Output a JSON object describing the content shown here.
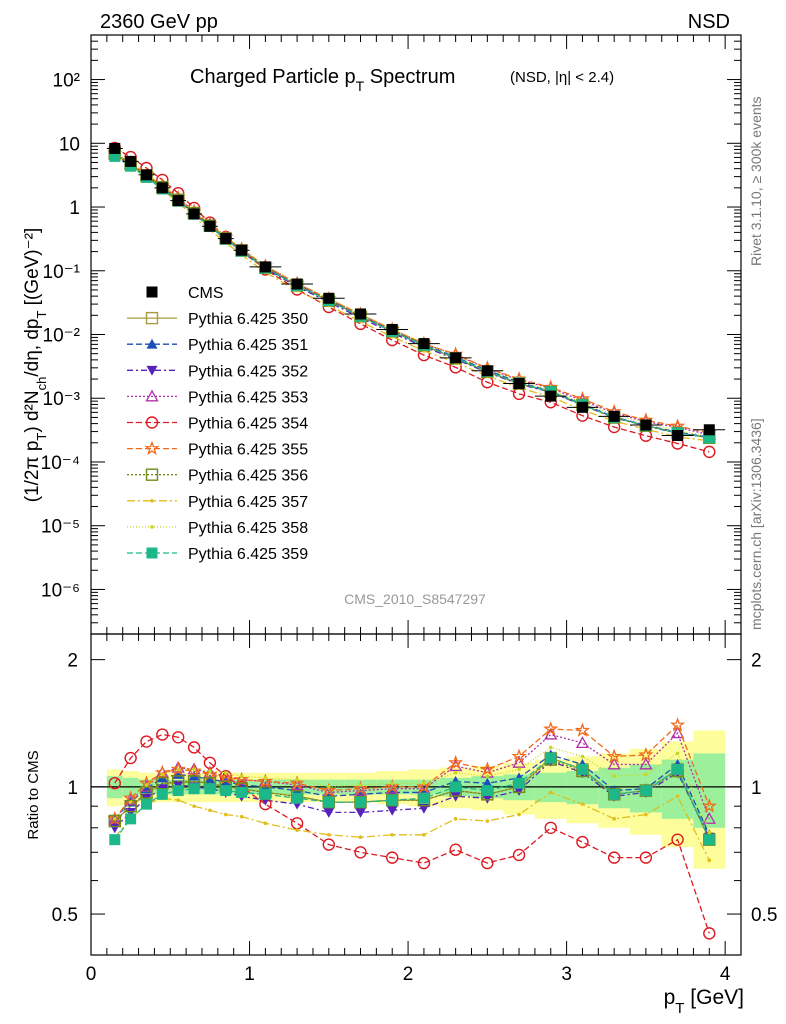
{
  "header": {
    "energy_label": "2360 GeV pp",
    "process_label": "NSD",
    "side_label_top": "Rivet 3.1.10, ≥ 300k events",
    "side_label_bottom": "mcplots.cern.ch [arXiv:1306.3436]"
  },
  "chart_data": {
    "type": "scatter",
    "title": "Charged Particle p_T Spectrum",
    "title_suffix": "(NSD, |η| < 2.4)",
    "analysis_id": "CMS_2010_S8547297",
    "xlabel": "p_T [GeV]",
    "ylabel_main": "(1/2π p_T) d²N_ch/dη, dp_T [(GeV)⁻²]",
    "ylabel_ratio": "Ratio to CMS",
    "xlim": [
      0,
      4.1
    ],
    "main_ylim": [
      2e-07,
      500
    ],
    "main_yscale": "log",
    "ratio_ylim": [
      0.4,
      2.3
    ],
    "ratio_yscale": "log",
    "x_ticks": [
      "0",
      "1",
      "2",
      "3",
      "4"
    ],
    "main_y_ticks": [
      "10⁻⁶",
      "10⁻⁵",
      "10⁻⁴",
      "10⁻³",
      "10⁻²",
      "10⁻¹",
      "1",
      "10",
      "10²"
    ],
    "ratio_y_ticks": [
      "0.5",
      "1",
      "2"
    ],
    "legend_position": "left, middle of main panel",
    "x": [
      0.15,
      0.25,
      0.35,
      0.45,
      0.55,
      0.65,
      0.75,
      0.85,
      0.95,
      1.1,
      1.3,
      1.5,
      1.7,
      1.9,
      2.1,
      2.3,
      2.5,
      2.7,
      2.9,
      3.1,
      3.3,
      3.5,
      3.7,
      3.9
    ],
    "x_err": [
      0.05,
      0.05,
      0.05,
      0.05,
      0.05,
      0.05,
      0.05,
      0.05,
      0.05,
      0.1,
      0.1,
      0.1,
      0.1,
      0.1,
      0.1,
      0.1,
      0.1,
      0.1,
      0.1,
      0.1,
      0.1,
      0.1,
      0.1,
      0.1
    ],
    "cms": [
      8.3,
      5.2,
      3.2,
      2.0,
      1.26,
      0.78,
      0.5,
      0.32,
      0.21,
      0.115,
      0.062,
      0.037,
      0.021,
      0.012,
      0.0072,
      0.0043,
      0.0027,
      0.0017,
      0.00108,
      0.00072,
      0.00052,
      0.00038,
      0.00026,
      0.00032
    ],
    "band_inner": [
      0.06,
      0.05,
      0.04,
      0.04,
      0.04,
      0.04,
      0.04,
      0.04,
      0.04,
      0.04,
      0.04,
      0.04,
      0.04,
      0.04,
      0.04,
      0.05,
      0.06,
      0.07,
      0.08,
      0.09,
      0.11,
      0.13,
      0.16,
      0.2
    ],
    "band_outer": [
      0.1,
      0.09,
      0.08,
      0.08,
      0.08,
      0.08,
      0.08,
      0.08,
      0.08,
      0.08,
      0.08,
      0.08,
      0.08,
      0.09,
      0.1,
      0.11,
      0.12,
      0.14,
      0.16,
      0.18,
      0.2,
      0.23,
      0.28,
      0.36
    ],
    "series": [
      {
        "name": "CMS",
        "color": "#000000",
        "marker": "filled-square",
        "dash": "none"
      },
      {
        "name": "Pythia 6.425 350",
        "color": "#a89b40",
        "marker": "open-square",
        "dash": "solid",
        "ratio": [
          0.83,
          0.9,
          0.96,
          1.02,
          1.02,
          1.03,
          1.02,
          1.0,
          0.99,
          0.97,
          0.95,
          0.92,
          0.92,
          0.93,
          0.93,
          0.98,
          0.96,
          1.0,
          1.17,
          1.1,
          0.96,
          0.98,
          1.1,
          0.75
        ]
      },
      {
        "name": "Pythia 6.425 351",
        "color": "#1c4fb8",
        "marker": "filled-triangle-up",
        "dash": "6,3",
        "ratio": [
          0.84,
          0.92,
          0.99,
          1.05,
          1.07,
          1.06,
          1.04,
          1.03,
          1.01,
          1.0,
          0.98,
          0.95,
          0.96,
          0.97,
          0.97,
          1.03,
          1.02,
          1.05,
          1.19,
          1.13,
          0.98,
          0.99,
          1.13,
          0.77
        ]
      },
      {
        "name": "Pythia 6.425 352",
        "color": "#5522bb",
        "marker": "filled-triangle-down",
        "dash": "6,3,2,3",
        "ratio": [
          0.8,
          0.87,
          0.94,
          0.99,
          1.01,
          1.0,
          0.99,
          0.97,
          0.95,
          0.93,
          0.91,
          0.87,
          0.87,
          0.88,
          0.89,
          0.95,
          0.94,
          0.98,
          1.15,
          1.08,
          0.95,
          0.97,
          1.08,
          0.76
        ]
      },
      {
        "name": "Pythia 6.425 353",
        "color": "#b030a8",
        "marker": "open-triangle-up",
        "dash": "2,2",
        "ratio": [
          0.84,
          0.93,
          1.0,
          1.08,
          1.11,
          1.1,
          1.08,
          1.06,
          1.04,
          1.03,
          1.01,
          0.97,
          0.98,
          0.99,
          0.99,
          1.12,
          1.08,
          1.14,
          1.33,
          1.27,
          1.13,
          1.13,
          1.34,
          0.84
        ]
      },
      {
        "name": "Pythia 6.425 354",
        "color": "#dd1a22",
        "marker": "open-circle",
        "dash": "6,3",
        "ratio": [
          1.02,
          1.17,
          1.28,
          1.33,
          1.31,
          1.24,
          1.14,
          1.06,
          1.0,
          0.91,
          0.82,
          0.73,
          0.7,
          0.68,
          0.66,
          0.71,
          0.66,
          0.69,
          0.8,
          0.74,
          0.68,
          0.68,
          0.75,
          0.45
        ]
      },
      {
        "name": "Pythia 6.425 355",
        "color": "#f06a1a",
        "marker": "open-star",
        "dash": "6,3",
        "ratio": [
          0.84,
          0.94,
          1.02,
          1.08,
          1.1,
          1.09,
          1.07,
          1.05,
          1.04,
          1.03,
          1.02,
          0.98,
          0.99,
          1.0,
          1.0,
          1.14,
          1.1,
          1.18,
          1.37,
          1.36,
          1.18,
          1.19,
          1.4,
          0.9
        ]
      },
      {
        "name": "Pythia 6.425 356",
        "color": "#6e8c1a",
        "marker": "open-square",
        "dash": "2,2",
        "ratio": [
          0.83,
          0.9,
          0.97,
          1.02,
          1.03,
          1.03,
          1.02,
          1.0,
          0.99,
          0.97,
          0.95,
          0.92,
          0.92,
          0.93,
          0.93,
          0.98,
          0.96,
          1.0,
          1.16,
          1.09,
          0.96,
          0.98,
          1.09,
          0.75
        ]
      },
      {
        "name": "Pythia 6.425 357",
        "color": "#e0bd1a",
        "marker": "small-dot",
        "dash": "8,3,2,3",
        "ratio": [
          0.76,
          0.84,
          0.91,
          0.94,
          0.93,
          0.9,
          0.88,
          0.86,
          0.85,
          0.82,
          0.79,
          0.77,
          0.76,
          0.77,
          0.77,
          0.84,
          0.83,
          0.86,
          0.97,
          0.91,
          0.84,
          0.86,
          0.95,
          0.67
        ]
      },
      {
        "name": "Pythia 6.425 358",
        "color": "#c8d622",
        "marker": "small-dot",
        "dash": "1,2",
        "ratio": [
          0.84,
          0.92,
          1.01,
          1.07,
          1.1,
          1.1,
          1.09,
          1.08,
          1.06,
          1.05,
          1.04,
          1.0,
          1.01,
          1.02,
          1.02,
          1.08,
          1.06,
          1.1,
          1.24,
          1.18,
          1.06,
          1.07,
          1.2,
          0.78
        ]
      },
      {
        "name": "Pythia 6.425 359",
        "color": "#1db88a",
        "marker": "filled-square",
        "dash": "6,3",
        "ratio": [
          0.75,
          0.84,
          0.91,
          0.96,
          0.98,
          0.99,
          0.99,
          0.98,
          0.97,
          0.96,
          0.94,
          0.92,
          0.92,
          0.93,
          0.94,
          1.0,
          0.98,
          1.02,
          1.17,
          1.1,
          0.96,
          0.98,
          1.1,
          0.75
        ]
      }
    ]
  }
}
